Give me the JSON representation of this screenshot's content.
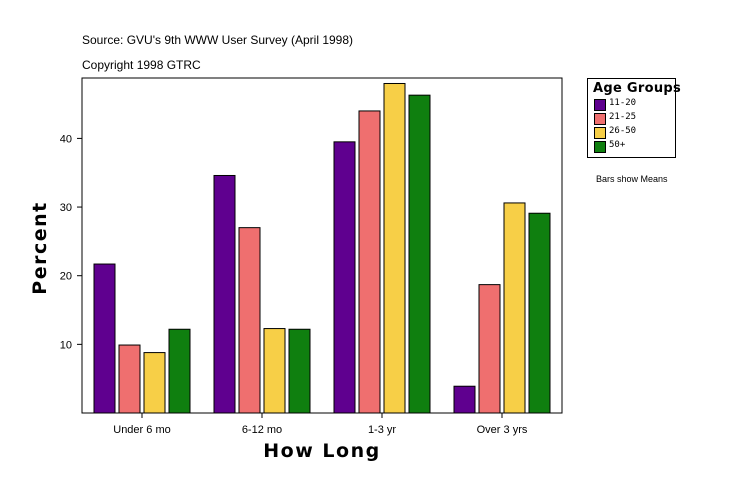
{
  "header": {
    "source": "Source: GVU's 9th WWW User Survey (April 1998)",
    "copyright": "Copyright 1998 GTRC"
  },
  "note": "Bars show Means",
  "chart_data": {
    "type": "bar",
    "xlabel": "How Long",
    "ylabel": "Percent",
    "ylim": [
      0,
      48.8
    ],
    "yticks": [
      10,
      20,
      30,
      40
    ],
    "grid": false,
    "legend_title": "Age Groups",
    "legend_position": "top-right, outside plot",
    "categories": [
      "Under 6 mo",
      "6-12 mo",
      "1-3 yr",
      "Over 3 yrs"
    ],
    "series": [
      {
        "name": "11-20",
        "color": "#5f008f",
        "values": [
          21.7,
          34.6,
          39.5,
          3.9
        ]
      },
      {
        "name": "21-25",
        "color": "#ef6f6f",
        "values": [
          9.9,
          27.0,
          44.0,
          18.7
        ]
      },
      {
        "name": "26-50",
        "color": "#f7cf47",
        "values": [
          8.8,
          12.3,
          48.0,
          30.6
        ]
      },
      {
        "name": "50+",
        "color": "#0f7f0f",
        "values": [
          12.2,
          12.2,
          46.3,
          29.1
        ]
      }
    ]
  }
}
